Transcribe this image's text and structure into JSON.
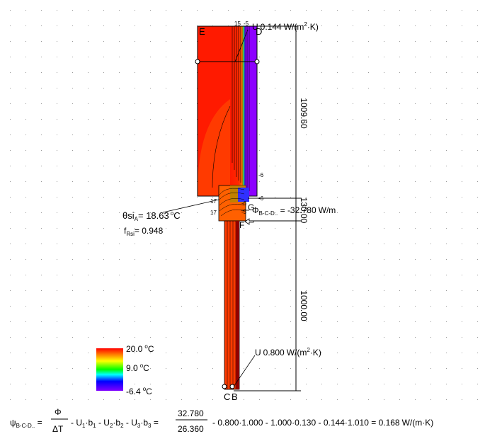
{
  "diagram": {
    "corner_labels": {
      "E": "E",
      "D": "D",
      "C": "C",
      "B": "B"
    },
    "upper_U": {
      "prefix": "U",
      "value": "0.144",
      "unit": "W/(m",
      "unit_sup": "2",
      "unit_end": "·K)"
    },
    "lower_U": {
      "prefix": "U",
      "value": "0.800",
      "unit": "W/(m",
      "unit_sup": "2",
      "unit_end": "·K)"
    },
    "theta_si": {
      "symbol": "θsi",
      "sub": "A",
      "value": "18.63",
      "unit": "C",
      "deg": "o"
    },
    "f_rsi": {
      "symbol": "f",
      "sub": "Rsi",
      "value": "0.948"
    },
    "phi": {
      "symbol": "Φ",
      "sub": "B-C-D..",
      "value": "-32.780",
      "unit": "W/m"
    },
    "point_labels": {
      "F": "F",
      "G": "G"
    },
    "dimensions": {
      "upper": "1009.60",
      "middle": "130.00",
      "lower": "1000.00"
    },
    "isotherm_labels": [
      "15",
      "-5",
      "-6",
      "-6",
      "17",
      "17",
      "-6",
      "-5"
    ]
  },
  "legend": {
    "max": "20.0",
    "mid": "9.0",
    "min": "-6.4",
    "unit": "C",
    "deg": "o"
  },
  "formula": {
    "psi_sub": "B-C-D..",
    "phi": "Φ",
    "delta_t": "ΔT",
    "terms": [
      "U",
      "b",
      "U",
      "b",
      "U",
      "b"
    ],
    "num": "32.780",
    "den": "26.360",
    "p1": "0.800·1.000",
    "p2": "1.000·0.130",
    "p3": "0.144·1.010",
    "result": "0.168",
    "result_unit": "W/(m·K)"
  }
}
